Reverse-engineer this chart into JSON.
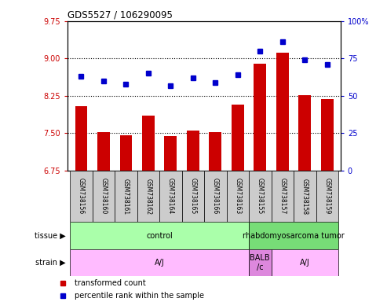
{
  "title": "GDS5527 / 106290095",
  "samples": [
    "GSM738156",
    "GSM738160",
    "GSM738161",
    "GSM738162",
    "GSM738164",
    "GSM738165",
    "GSM738166",
    "GSM738163",
    "GSM738155",
    "GSM738157",
    "GSM738158",
    "GSM738159"
  ],
  "bar_values": [
    8.05,
    7.52,
    7.46,
    7.85,
    7.45,
    7.55,
    7.52,
    8.08,
    8.9,
    9.12,
    8.27,
    8.18
  ],
  "dot_values": [
    63,
    60,
    58,
    65,
    57,
    62,
    59,
    64,
    80,
    86,
    74,
    71
  ],
  "ylim_left": [
    6.75,
    9.75
  ],
  "ylim_right": [
    0,
    100
  ],
  "yticks_left": [
    6.75,
    7.5,
    8.25,
    9.0,
    9.75
  ],
  "yticks_right": [
    0,
    25,
    50,
    75,
    100
  ],
  "bar_color": "#cc0000",
  "dot_color": "#0000cc",
  "hline_values": [
    7.5,
    8.25,
    9.0
  ],
  "tissue_groups": [
    {
      "label": "control",
      "start": 0,
      "end": 8,
      "color": "#aaffaa"
    },
    {
      "label": "rhabdomyosarcoma tumor",
      "start": 8,
      "end": 12,
      "color": "#77dd77"
    }
  ],
  "strain_groups": [
    {
      "label": "A/J",
      "start": 0,
      "end": 8,
      "color": "#ffbbff"
    },
    {
      "label": "BALB\n/c",
      "start": 8,
      "end": 9,
      "color": "#dd88dd"
    },
    {
      "label": "A/J",
      "start": 9,
      "end": 12,
      "color": "#ffbbff"
    }
  ],
  "legend_items": [
    {
      "label": "transformed count",
      "color": "#cc0000"
    },
    {
      "label": "percentile rank within the sample",
      "color": "#0000cc"
    }
  ],
  "sample_box_color": "#cccccc",
  "spine_color": "#000000",
  "fig_bg": "#ffffff"
}
